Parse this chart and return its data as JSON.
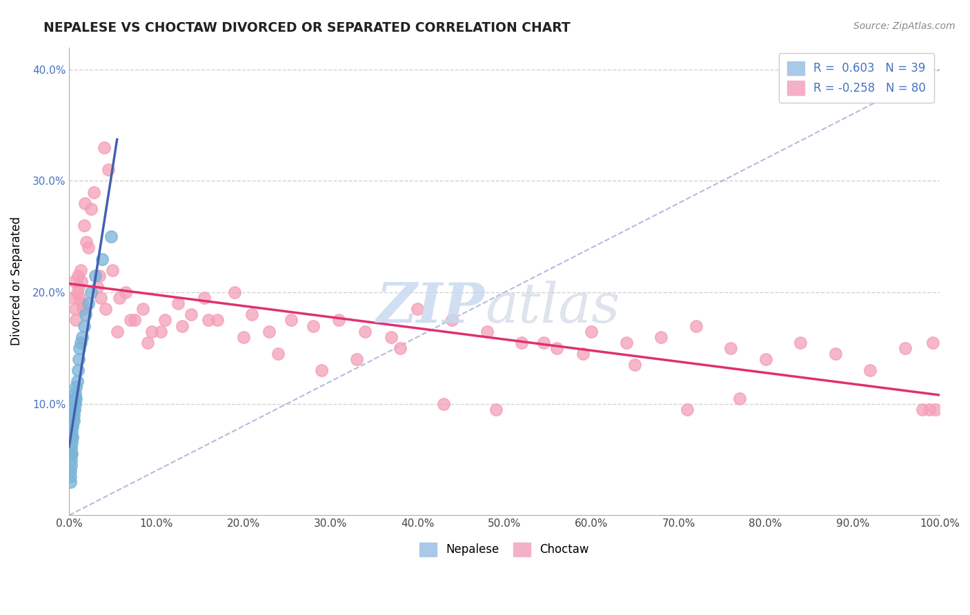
{
  "title": "NEPALESE VS CHOCTAW DIVORCED OR SEPARATED CORRELATION CHART",
  "source_text": "Source: ZipAtlas.com",
  "ylabel": "Divorced or Separated",
  "watermark_zip": "ZIP",
  "watermark_atlas": "atlas",
  "xlim": [
    0,
    1.0
  ],
  "ylim": [
    0,
    0.42
  ],
  "xticks": [
    0.0,
    0.1,
    0.2,
    0.3,
    0.4,
    0.5,
    0.6,
    0.7,
    0.8,
    0.9,
    1.0
  ],
  "yticks": [
    0.1,
    0.2,
    0.3,
    0.4
  ],
  "nepalese_x": [
    0.001,
    0.001,
    0.001,
    0.002,
    0.002,
    0.002,
    0.002,
    0.003,
    0.003,
    0.003,
    0.003,
    0.003,
    0.004,
    0.004,
    0.004,
    0.004,
    0.005,
    0.005,
    0.005,
    0.005,
    0.006,
    0.006,
    0.007,
    0.007,
    0.008,
    0.008,
    0.009,
    0.01,
    0.011,
    0.012,
    0.013,
    0.015,
    0.017,
    0.019,
    0.022,
    0.025,
    0.03,
    0.038,
    0.048
  ],
  "nepalese_y": [
    0.03,
    0.04,
    0.035,
    0.045,
    0.05,
    0.055,
    0.06,
    0.055,
    0.065,
    0.07,
    0.075,
    0.08,
    0.07,
    0.08,
    0.085,
    0.09,
    0.085,
    0.09,
    0.095,
    0.1,
    0.095,
    0.105,
    0.1,
    0.11,
    0.105,
    0.115,
    0.12,
    0.13,
    0.14,
    0.15,
    0.155,
    0.16,
    0.17,
    0.18,
    0.19,
    0.2,
    0.215,
    0.23,
    0.25
  ],
  "choctaw_x": [
    0.005,
    0.006,
    0.007,
    0.008,
    0.009,
    0.01,
    0.011,
    0.012,
    0.013,
    0.014,
    0.015,
    0.016,
    0.017,
    0.018,
    0.02,
    0.022,
    0.025,
    0.028,
    0.032,
    0.036,
    0.04,
    0.045,
    0.05,
    0.058,
    0.065,
    0.075,
    0.085,
    0.095,
    0.11,
    0.125,
    0.14,
    0.155,
    0.17,
    0.19,
    0.21,
    0.23,
    0.255,
    0.28,
    0.31,
    0.34,
    0.37,
    0.4,
    0.44,
    0.48,
    0.52,
    0.56,
    0.6,
    0.64,
    0.68,
    0.72,
    0.76,
    0.8,
    0.84,
    0.88,
    0.92,
    0.96,
    0.98,
    0.988,
    0.992,
    0.995,
    0.035,
    0.042,
    0.055,
    0.07,
    0.09,
    0.105,
    0.13,
    0.16,
    0.2,
    0.24,
    0.29,
    0.33,
    0.38,
    0.43,
    0.49,
    0.545,
    0.59,
    0.65,
    0.71,
    0.77
  ],
  "choctaw_y": [
    0.195,
    0.21,
    0.185,
    0.175,
    0.2,
    0.215,
    0.205,
    0.195,
    0.22,
    0.21,
    0.19,
    0.185,
    0.26,
    0.28,
    0.245,
    0.24,
    0.275,
    0.29,
    0.205,
    0.195,
    0.33,
    0.31,
    0.22,
    0.195,
    0.2,
    0.175,
    0.185,
    0.165,
    0.175,
    0.19,
    0.18,
    0.195,
    0.175,
    0.2,
    0.18,
    0.165,
    0.175,
    0.17,
    0.175,
    0.165,
    0.16,
    0.185,
    0.175,
    0.165,
    0.155,
    0.15,
    0.165,
    0.155,
    0.16,
    0.17,
    0.15,
    0.14,
    0.155,
    0.145,
    0.13,
    0.15,
    0.095,
    0.095,
    0.155,
    0.095,
    0.215,
    0.185,
    0.165,
    0.175,
    0.155,
    0.165,
    0.17,
    0.175,
    0.16,
    0.145,
    0.13,
    0.14,
    0.15,
    0.1,
    0.095,
    0.155,
    0.145,
    0.135,
    0.095,
    0.105
  ],
  "nepalese_color": "#7ab4d8",
  "choctaw_color": "#f4a0b8",
  "nepalese_line_color": "#4060b0",
  "choctaw_line_color": "#e03070",
  "ref_line_color": "#8899cc",
  "grid_color": "#cccccc",
  "background_color": "#ffffff",
  "title_color": "#222222",
  "source_color": "#888888",
  "ytick_color": "#4472c4",
  "xtick_color": "#444444",
  "legend_nepalese_color": "#aac8e8",
  "legend_choctaw_color": "#f4b0c8",
  "legend_text_color": "#4472c4"
}
